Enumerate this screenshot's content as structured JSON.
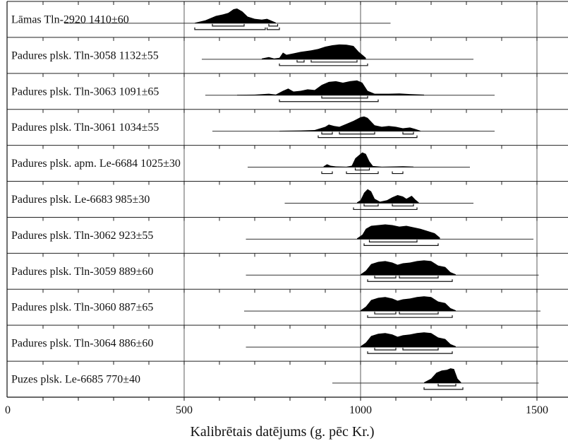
{
  "chart_data": {
    "type": "area",
    "title": "",
    "xlabel": "Kalibrētais datējums (g. pēc Kr.)",
    "ylabel": "",
    "xlim": [
      0,
      1600
    ],
    "xticks": [
      0,
      500,
      1000,
      1500
    ],
    "tick_labels": [
      "0",
      "500",
      "1000",
      "1500"
    ],
    "grid": "vertical lines at 500, 1000, 1500",
    "colors": {
      "fill": "#000000",
      "line": "#333333",
      "grid": "#777777"
    },
    "series": [
      {
        "name": "Lāmas Tln-2920  1410±60",
        "range": [
          160,
          1085
        ],
        "peaks": [
          [
            530,
            0.03
          ],
          [
            560,
            0.2
          ],
          [
            590,
            0.5
          ],
          [
            610,
            0.6
          ],
          [
            625,
            0.7
          ],
          [
            640,
            0.95
          ],
          [
            650,
            1.0
          ],
          [
            665,
            0.8
          ],
          [
            680,
            0.45
          ],
          [
            700,
            0.3
          ],
          [
            720,
            0.25
          ],
          [
            735,
            0.3
          ],
          [
            745,
            0.2
          ],
          [
            760,
            0.05
          ]
        ],
        "sigma1": [
          [
            580,
            670
          ],
          [
            740,
            765
          ]
        ],
        "sigma2": [
          [
            530,
            730
          ],
          [
            735,
            770
          ]
        ]
      },
      {
        "name": "Padures plsk. Tln-3058  1132±55",
        "range": [
          550,
          1320
        ],
        "peaks": [
          [
            720,
            0.05
          ],
          [
            740,
            0.15
          ],
          [
            755,
            0.05
          ],
          [
            770,
            0.1
          ],
          [
            780,
            0.45
          ],
          [
            790,
            0.3
          ],
          [
            810,
            0.4
          ],
          [
            830,
            0.5
          ],
          [
            860,
            0.6
          ],
          [
            880,
            0.7
          ],
          [
            900,
            0.85
          ],
          [
            920,
            0.95
          ],
          [
            940,
            1.0
          ],
          [
            960,
            0.98
          ],
          [
            980,
            0.9
          ],
          [
            995,
            0.5
          ],
          [
            1005,
            0.3
          ],
          [
            1015,
            0.1
          ]
        ],
        "sigma1": [
          [
            820,
            840
          ],
          [
            860,
            990
          ]
        ],
        "sigma2": [
          [
            770,
            1020
          ]
        ]
      },
      {
        "name": "Padures plsk. Tln-3063  1091±65",
        "range": [
          560,
          1380
        ],
        "peaks": [
          [
            650,
            0.03
          ],
          [
            700,
            0.04
          ],
          [
            740,
            0.1
          ],
          [
            760,
            0.05
          ],
          [
            780,
            0.3
          ],
          [
            795,
            0.45
          ],
          [
            810,
            0.25
          ],
          [
            830,
            0.3
          ],
          [
            850,
            0.4
          ],
          [
            870,
            0.35
          ],
          [
            890,
            0.7
          ],
          [
            910,
            0.9
          ],
          [
            930,
            0.95
          ],
          [
            950,
            0.85
          ],
          [
            970,
            0.95
          ],
          [
            990,
            1.0
          ],
          [
            1005,
            0.85
          ],
          [
            1020,
            0.3
          ],
          [
            1040,
            0.1
          ],
          [
            1080,
            0.1
          ],
          [
            1110,
            0.12
          ],
          [
            1140,
            0.08
          ],
          [
            1180,
            0.04
          ]
        ],
        "sigma1": [
          [
            890,
            1020
          ]
        ],
        "sigma2": [
          [
            770,
            1050
          ]
        ]
      },
      {
        "name": "Padures plsk. Tln-3061  1034±55",
        "range": [
          580,
          1380
        ],
        "peaks": [
          [
            770,
            0.03
          ],
          [
            830,
            0.05
          ],
          [
            870,
            0.08
          ],
          [
            900,
            0.3
          ],
          [
            910,
            0.45
          ],
          [
            925,
            0.35
          ],
          [
            940,
            0.3
          ],
          [
            960,
            0.5
          ],
          [
            980,
            0.7
          ],
          [
            1000,
            0.95
          ],
          [
            1010,
            1.0
          ],
          [
            1020,
            0.9
          ],
          [
            1040,
            0.4
          ],
          [
            1060,
            0.3
          ],
          [
            1080,
            0.35
          ],
          [
            1100,
            0.3
          ],
          [
            1120,
            0.2
          ],
          [
            1140,
            0.25
          ],
          [
            1155,
            0.15
          ],
          [
            1170,
            0.03
          ]
        ],
        "sigma1": [
          [
            890,
            920
          ],
          [
            940,
            1040
          ],
          [
            1120,
            1150
          ]
        ],
        "sigma2": [
          [
            880,
            1160
          ]
        ]
      },
      {
        "name": "Padures plsk. apm. Le-6684  1025±30",
        "range": [
          680,
          1310
        ],
        "peaks": [
          [
            895,
            0.05
          ],
          [
            905,
            0.2
          ],
          [
            915,
            0.1
          ],
          [
            930,
            0.05
          ],
          [
            960,
            0.03
          ],
          [
            975,
            0.1
          ],
          [
            985,
            0.6
          ],
          [
            995,
            0.8
          ],
          [
            1005,
            1.0
          ],
          [
            1015,
            0.9
          ],
          [
            1025,
            0.4
          ],
          [
            1035,
            0.08
          ],
          [
            1060,
            0.03
          ],
          [
            1100,
            0.05
          ],
          [
            1120,
            0.06
          ],
          [
            1150,
            0.04
          ]
        ],
        "sigma1": [
          [
            985,
            1025
          ]
        ],
        "sigma2": [
          [
            890,
            920
          ],
          [
            960,
            1050
          ],
          [
            1090,
            1120
          ]
        ]
      },
      {
        "name": "Padures plsk. Le-6683  985±30",
        "range": [
          785,
          1320
        ],
        "peaks": [
          [
            990,
            0.05
          ],
          [
            1000,
            0.2
          ],
          [
            1010,
            0.7
          ],
          [
            1020,
            0.95
          ],
          [
            1030,
            0.8
          ],
          [
            1040,
            0.3
          ],
          [
            1055,
            0.1
          ],
          [
            1075,
            0.2
          ],
          [
            1090,
            0.4
          ],
          [
            1105,
            0.55
          ],
          [
            1120,
            0.45
          ],
          [
            1130,
            0.3
          ],
          [
            1145,
            0.5
          ],
          [
            1155,
            0.25
          ],
          [
            1165,
            0.05
          ]
        ],
        "sigma1": [
          [
            1010,
            1050
          ],
          [
            1090,
            1150
          ]
        ],
        "sigma2": [
          [
            980,
            1160
          ]
        ]
      },
      {
        "name": "Padures plsk. Tln-3062  923±55",
        "range": [
          675,
          1490
        ],
        "peaks": [
          [
            990,
            0.05
          ],
          [
            1005,
            0.3
          ],
          [
            1015,
            0.7
          ],
          [
            1030,
            0.9
          ],
          [
            1050,
            0.95
          ],
          [
            1070,
            1.0
          ],
          [
            1090,
            0.95
          ],
          [
            1110,
            0.85
          ],
          [
            1130,
            0.9
          ],
          [
            1150,
            0.8
          ],
          [
            1170,
            0.7
          ],
          [
            1190,
            0.55
          ],
          [
            1210,
            0.4
          ],
          [
            1225,
            0.1
          ]
        ],
        "sigma1": [
          [
            1025,
            1160
          ]
        ],
        "sigma2": [
          [
            1010,
            1220
          ]
        ]
      },
      {
        "name": "Padures plsk. Tln-3059  889±60",
        "range": [
          675,
          1505
        ],
        "peaks": [
          [
            1000,
            0.05
          ],
          [
            1015,
            0.3
          ],
          [
            1030,
            0.75
          ],
          [
            1050,
            0.9
          ],
          [
            1070,
            0.95
          ],
          [
            1090,
            0.85
          ],
          [
            1105,
            0.7
          ],
          [
            1120,
            0.8
          ],
          [
            1140,
            0.85
          ],
          [
            1160,
            0.95
          ],
          [
            1180,
            1.0
          ],
          [
            1200,
            0.95
          ],
          [
            1220,
            0.65
          ],
          [
            1240,
            0.55
          ],
          [
            1255,
            0.2
          ],
          [
            1270,
            0.05
          ]
        ],
        "sigma1": [
          [
            1040,
            1100
          ],
          [
            1110,
            1220
          ]
        ],
        "sigma2": [
          [
            1020,
            1260
          ]
        ]
      },
      {
        "name": "Padures plsk. Tln-3060  887±65",
        "range": [
          670,
          1510
        ],
        "peaks": [
          [
            1000,
            0.05
          ],
          [
            1015,
            0.3
          ],
          [
            1030,
            0.75
          ],
          [
            1050,
            0.9
          ],
          [
            1070,
            0.95
          ],
          [
            1090,
            0.85
          ],
          [
            1105,
            0.7
          ],
          [
            1120,
            0.8
          ],
          [
            1140,
            0.85
          ],
          [
            1160,
            0.95
          ],
          [
            1180,
            1.0
          ],
          [
            1200,
            0.95
          ],
          [
            1220,
            0.65
          ],
          [
            1240,
            0.55
          ],
          [
            1255,
            0.2
          ],
          [
            1270,
            0.05
          ]
        ],
        "sigma1": [
          [
            1040,
            1100
          ],
          [
            1110,
            1220
          ]
        ],
        "sigma2": [
          [
            1020,
            1260
          ]
        ]
      },
      {
        "name": "Padures plsk. Tln-3064  886±60",
        "range": [
          675,
          1505
        ],
        "peaks": [
          [
            1000,
            0.05
          ],
          [
            1015,
            0.3
          ],
          [
            1030,
            0.75
          ],
          [
            1050,
            0.9
          ],
          [
            1070,
            0.95
          ],
          [
            1090,
            0.85
          ],
          [
            1105,
            0.7
          ],
          [
            1120,
            0.8
          ],
          [
            1140,
            0.85
          ],
          [
            1160,
            0.95
          ],
          [
            1180,
            1.0
          ],
          [
            1200,
            0.95
          ],
          [
            1220,
            0.65
          ],
          [
            1240,
            0.55
          ],
          [
            1255,
            0.2
          ],
          [
            1270,
            0.05
          ]
        ],
        "sigma1": [
          [
            1040,
            1100
          ],
          [
            1120,
            1220
          ]
        ],
        "sigma2": [
          [
            1020,
            1260
          ]
        ]
      },
      {
        "name": "Puzes plsk. Le-6685  770±40",
        "range": [
          920,
          1505
        ],
        "peaks": [
          [
            1180,
            0.05
          ],
          [
            1200,
            0.3
          ],
          [
            1215,
            0.7
          ],
          [
            1230,
            0.85
          ],
          [
            1245,
            0.9
          ],
          [
            1255,
            1.0
          ],
          [
            1265,
            0.95
          ],
          [
            1275,
            0.3
          ],
          [
            1285,
            0.05
          ]
        ],
        "sigma1": [
          [
            1220,
            1270
          ]
        ],
        "sigma2": [
          [
            1180,
            1290
          ]
        ]
      }
    ]
  }
}
